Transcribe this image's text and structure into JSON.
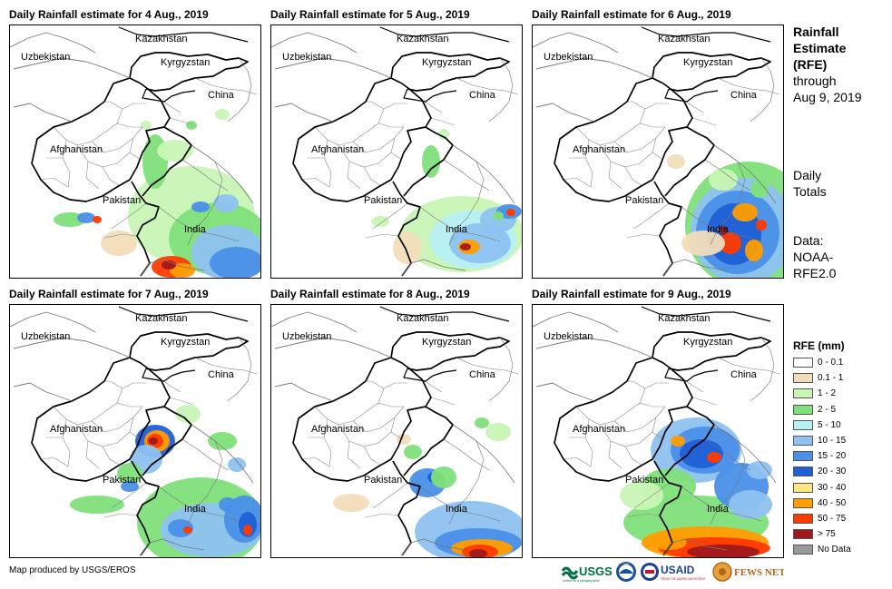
{
  "panels": [
    {
      "title": "Daily Rainfall estimate for 4 Aug., 2019"
    },
    {
      "title": "Daily Rainfall estimate for 5 Aug., 2019"
    },
    {
      "title": "Daily Rainfall estimate for 6 Aug., 2019"
    },
    {
      "title": "Daily Rainfall estimate for 7 Aug., 2019"
    },
    {
      "title": "Daily Rainfall estimate for 8 Aug., 2019"
    },
    {
      "title": "Daily Rainfall estimate for 9 Aug., 2019"
    }
  ],
  "country_labels": {
    "kazakhstan": "Kazakhstan",
    "uzbekistan": "Uzbekistan",
    "kyrgyzstan": "Kyrgyzstan",
    "china": "China",
    "afghanistan": "Afghanistan",
    "pakistan": "Pakistan",
    "india": "India"
  },
  "sidebar": {
    "title_line1": "Rainfall",
    "title_line2": "Estimate",
    "title_line3": "(RFE)",
    "title_line4": "through",
    "title_line5": "Aug 9, 2019",
    "daily_line1": "Daily",
    "daily_line2": "Totals",
    "data_line1": "Data:",
    "data_line2": "NOAA-",
    "data_line3": "RFE2.0"
  },
  "legend": {
    "title": "RFE (mm)",
    "items": [
      {
        "label": "0 - 0.1",
        "color": "#ffffff"
      },
      {
        "label": "0.1 - 1",
        "color": "#f2dcb9"
      },
      {
        "label": "1 - 2",
        "color": "#c9f5b5"
      },
      {
        "label": "2 - 5",
        "color": "#7fe07a"
      },
      {
        "label": "5 - 10",
        "color": "#b7f0f5"
      },
      {
        "label": "10 - 15",
        "color": "#8ec2f0"
      },
      {
        "label": "15 - 20",
        "color": "#4a90e8"
      },
      {
        "label": "20 - 30",
        "color": "#1f5fd6"
      },
      {
        "label": "30 - 40",
        "color": "#ffe680"
      },
      {
        "label": "40 - 50",
        "color": "#ff9d00"
      },
      {
        "label": "50 - 75",
        "color": "#ff3a00"
      },
      {
        "label": "> 75",
        "color": "#a0181c"
      },
      {
        "label": "No Data",
        "color": "#999999"
      }
    ]
  },
  "footer": {
    "credit": "Map produced by USGS/EROS"
  },
  "logos": {
    "usgs": "USGS",
    "usgs_tagline": "science for a changing world",
    "noaa": "NOAA",
    "usaid": "USAID",
    "usaid_tagline": "FROM THE AMERICAN PEOPLE",
    "fewsnet": "FEWS NET"
  }
}
